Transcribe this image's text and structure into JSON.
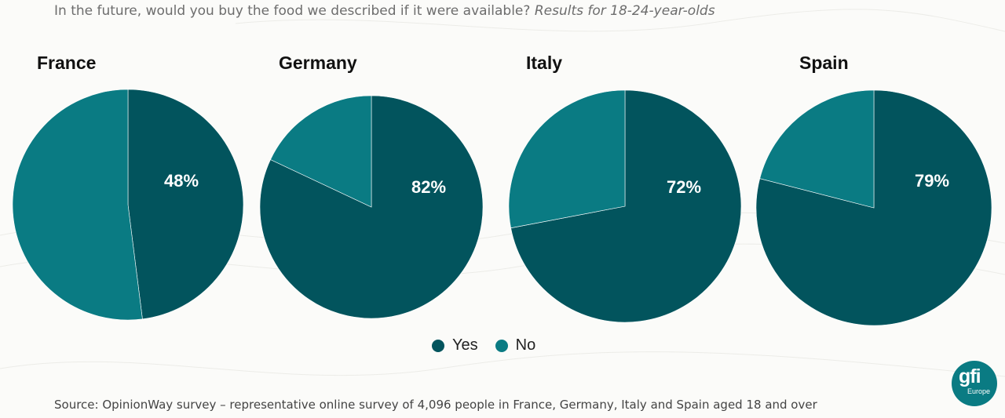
{
  "subtitle": {
    "main": "In the future, would you buy the food we described if it were available?",
    "emphasis": "Results for 18-24-year-olds"
  },
  "colors": {
    "yes": "#02545d",
    "no": "#0a7b83",
    "label": "#ffffff"
  },
  "chart_data": [
    {
      "type": "pie",
      "title": "France",
      "slices": [
        {
          "label": "Yes",
          "value": 48
        },
        {
          "label": "No",
          "value": 52
        }
      ],
      "data_label": "48%"
    },
    {
      "type": "pie",
      "title": "Germany",
      "slices": [
        {
          "label": "Yes",
          "value": 82
        },
        {
          "label": "No",
          "value": 18
        }
      ],
      "data_label": "82%"
    },
    {
      "type": "pie",
      "title": "Italy",
      "slices": [
        {
          "label": "Yes",
          "value": 72
        },
        {
          "label": "No",
          "value": 28
        }
      ],
      "data_label": "72%"
    },
    {
      "type": "pie",
      "title": "Spain",
      "slices": [
        {
          "label": "Yes",
          "value": 79
        },
        {
          "label": "No",
          "value": 21
        }
      ],
      "data_label": "79%"
    }
  ],
  "legend": [
    {
      "label": "Yes"
    },
    {
      "label": "No"
    }
  ],
  "source": "Source: OpinionWay survey – representative online survey of 4,096 people in France, Germany, Italy and Spain aged 18 and over",
  "logo": {
    "mark": "gfi",
    "sub": "Europe"
  }
}
